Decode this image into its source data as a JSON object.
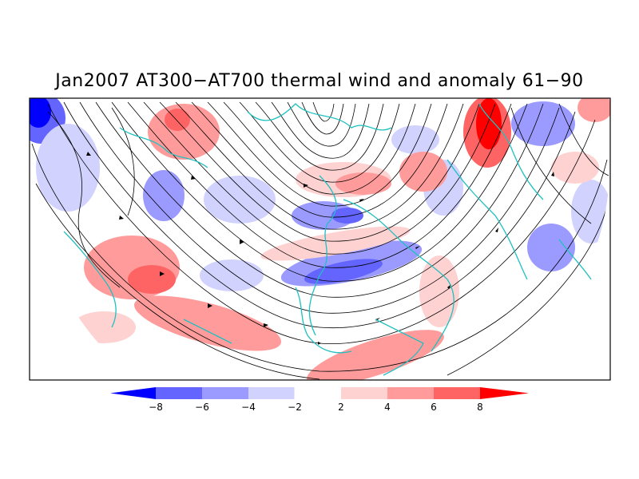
{
  "title": "Jan2007 AT300−AT700 thermal wind and anomaly 61−90",
  "colorbar": {
    "labels": [
      "−8",
      "−6",
      "−4",
      "−2",
      "2",
      "4",
      "6",
      "8"
    ],
    "colors": [
      "#0000ff",
      "#6464ff",
      "#9b9bff",
      "#d2d2ff",
      "#ffffff",
      "#ffd2d2",
      "#ff9b9b",
      "#ff6464",
      "#ff0000"
    ]
  },
  "map": {
    "coastline_color": "#20c0c0",
    "streamline_color": "#000000",
    "positive_anomaly_color": "#ff0000",
    "negative_anomaly_color": "#0000ff"
  }
}
